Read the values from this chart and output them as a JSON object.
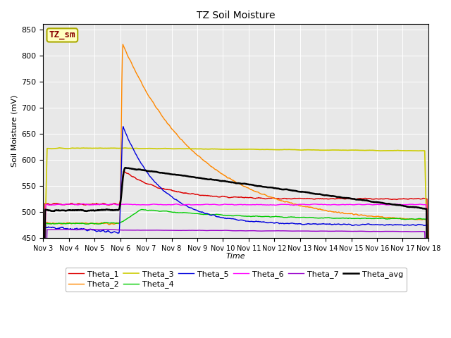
{
  "title": "TZ Soil Moisture",
  "xlabel": "Time",
  "ylabel": "Soil Moisture (mV)",
  "ylim": [
    450,
    860
  ],
  "xlim": [
    0,
    15
  ],
  "xtick_labels": [
    "Nov 3",
    "Nov 4",
    "Nov 5",
    "Nov 6",
    "Nov 7",
    "Nov 8",
    "Nov 9",
    "Nov 10",
    "Nov 11",
    "Nov 12",
    "Nov 13",
    "Nov 14",
    "Nov 15",
    "Nov 16",
    "Nov 17",
    "Nov 18"
  ],
  "xtick_positions": [
    0,
    1,
    2,
    3,
    4,
    5,
    6,
    7,
    8,
    9,
    10,
    11,
    12,
    13,
    14,
    15
  ],
  "legend_label": "TZ_sm",
  "legend_box_facecolor": "#FFFFC0",
  "legend_box_edgecolor": "#AAAA00",
  "legend_text_color": "#880000",
  "background_color": "#E8E8E8",
  "series": {
    "Theta_1": {
      "color": "#DD0000",
      "lw": 1.0
    },
    "Theta_2": {
      "color": "#FF8800",
      "lw": 1.0
    },
    "Theta_3": {
      "color": "#CCCC00",
      "lw": 1.2
    },
    "Theta_4": {
      "color": "#00CC00",
      "lw": 1.0
    },
    "Theta_5": {
      "color": "#0000DD",
      "lw": 1.0
    },
    "Theta_6": {
      "color": "#FF00FF",
      "lw": 1.0
    },
    "Theta_7": {
      "color": "#9900CC",
      "lw": 1.0
    },
    "Theta_avg": {
      "color": "#000000",
      "lw": 1.8
    }
  }
}
